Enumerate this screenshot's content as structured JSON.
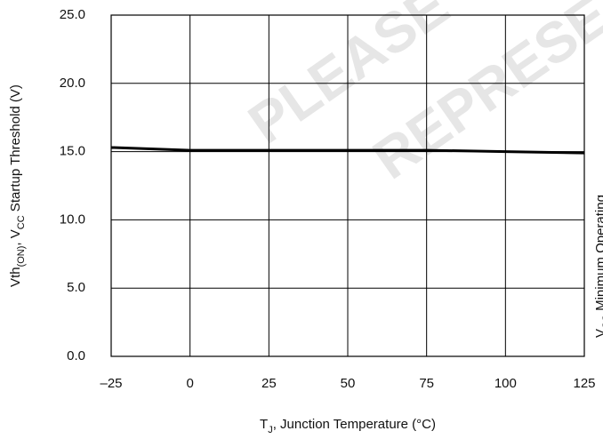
{
  "chart_data": {
    "type": "line",
    "x_label_parts": [
      "T",
      "J",
      ", Junction Temperature (°C)"
    ],
    "y_label_parts": [
      "Vth",
      "(ON)",
      ", V",
      "CC",
      " Startup Threshold (V)"
    ],
    "watermark": [
      "PLEASE CO",
      "REPRESE"
    ],
    "side_label_parts": [
      "V",
      "CC",
      " Minimum Operating"
    ],
    "x": [
      -25,
      0,
      25,
      50,
      75,
      100,
      125
    ],
    "series": [
      {
        "color": "#000000",
        "values": [
          15.3,
          15.1,
          15.1,
          15.1,
          15.1,
          15.0,
          14.9
        ]
      }
    ],
    "xlim": [
      -25,
      125
    ],
    "xticks": [
      {
        "value": -25,
        "label": "–25"
      },
      0,
      25,
      50,
      75,
      100,
      125
    ],
    "ylim": [
      0,
      25
    ],
    "yticks": [
      {
        "value": 0,
        "label": "0.0"
      },
      {
        "value": 5,
        "label": "5.0"
      },
      {
        "value": 10,
        "label": "10.0"
      },
      {
        "value": 15,
        "label": "15.0"
      },
      {
        "value": 20,
        "label": "20.0"
      },
      {
        "value": 25,
        "label": "25.0"
      }
    ],
    "grid": true
  }
}
